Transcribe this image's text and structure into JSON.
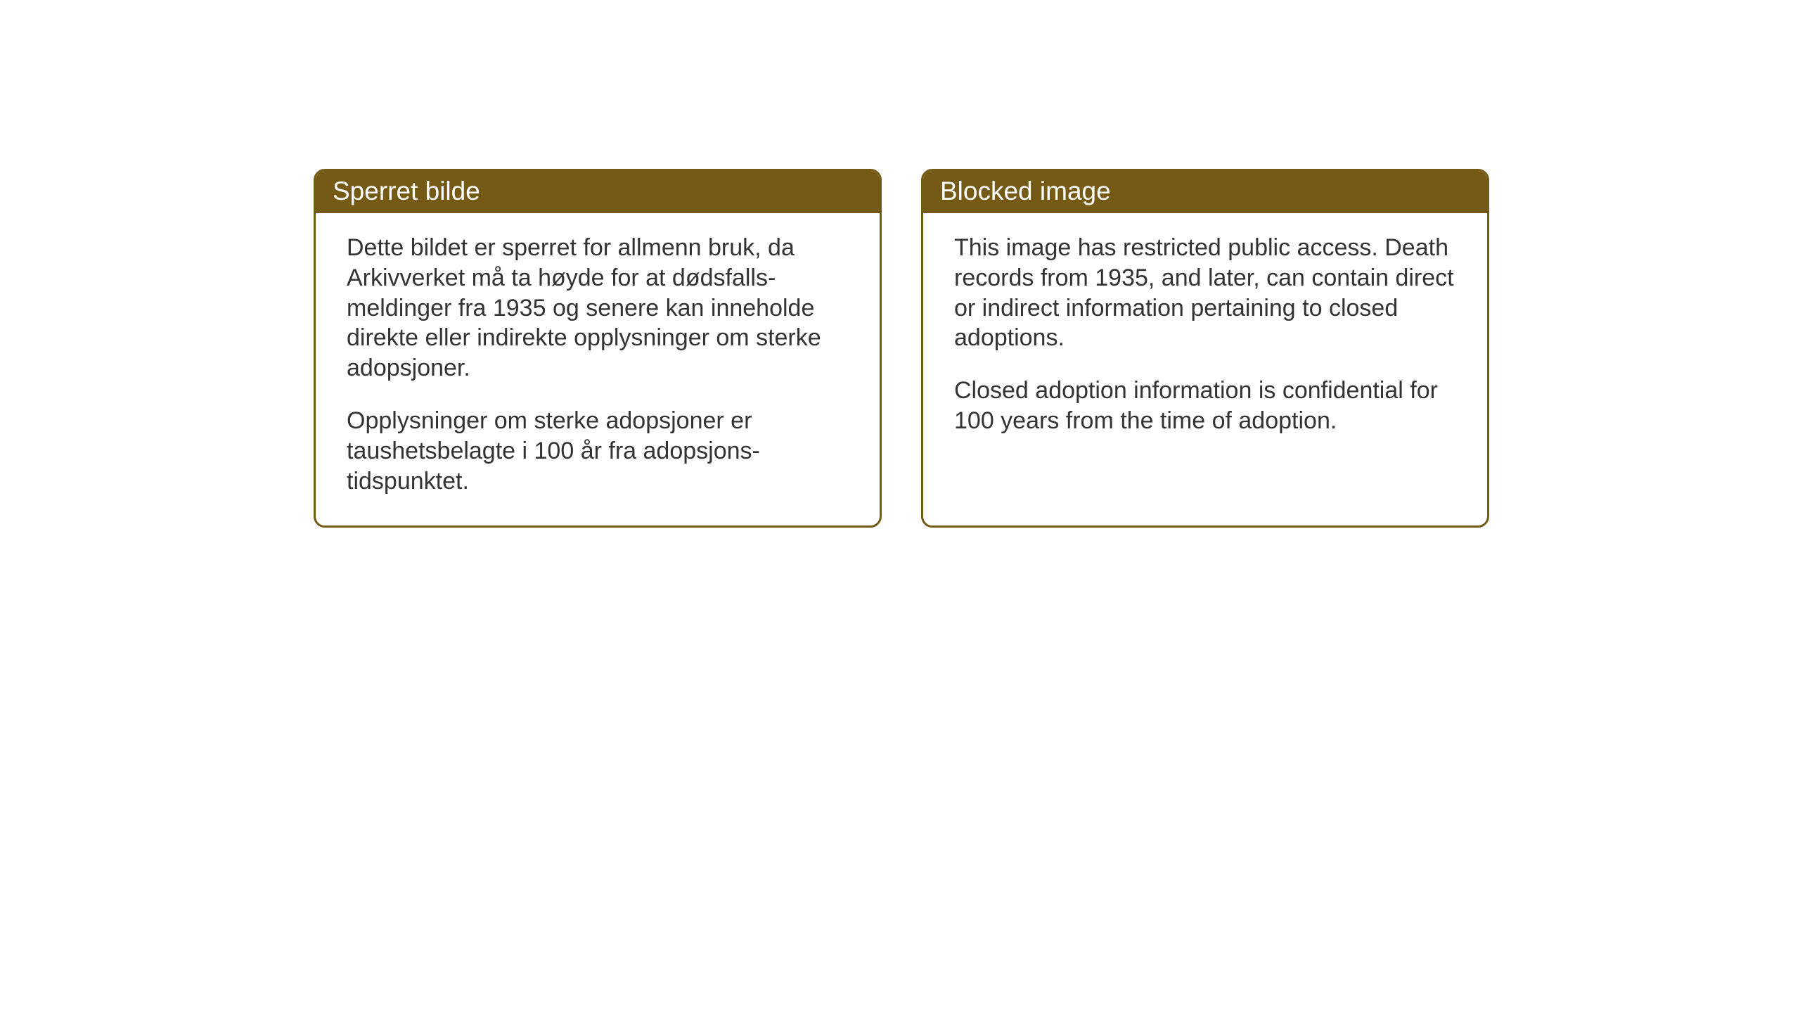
{
  "layout": {
    "card_border_color": "#745a15",
    "card_header_bg": "#745a15",
    "card_header_text_color": "#ffffff",
    "card_body_bg": "#ffffff",
    "card_body_text_color": "#333333",
    "page_bg": "#ffffff",
    "border_radius": 16,
    "border_width": 3,
    "header_fontsize": 37,
    "body_fontsize": 34
  },
  "cards": {
    "norwegian": {
      "title": "Sperret bilde",
      "paragraph1": "Dette bildet er sperret for allmenn bruk, da Arkivverket må ta høyde for at dødsfalls-meldinger fra 1935 og senere kan inneholde direkte eller indirekte opplysninger om sterke adopsjoner.",
      "paragraph2": "Opplysninger om sterke adopsjoner er taushetsbelagte i 100 år fra adopsjons-tidspunktet."
    },
    "english": {
      "title": "Blocked image",
      "paragraph1": "This image has restricted public access. Death records from 1935, and later, can contain direct or indirect information pertaining to closed adoptions.",
      "paragraph2": "Closed adoption information is confidential for 100 years from the time of adoption."
    }
  }
}
